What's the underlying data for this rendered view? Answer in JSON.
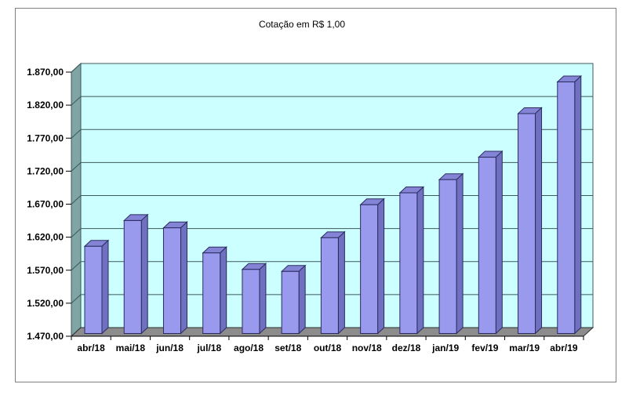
{
  "frame": {
    "border_color": "#808080",
    "background": "#ffffff"
  },
  "chart_data": {
    "type": "bar",
    "style": "3d-column",
    "title": "Cotação em R$ 1,00",
    "categories": [
      "abr/18",
      "mai/18",
      "jun/18",
      "jul/18",
      "ago/18",
      "set/18",
      "out/18",
      "nov/18",
      "dez/18",
      "jan/19",
      "fev/19",
      "mar/19",
      "abr/19"
    ],
    "values": [
      1602,
      1641,
      1630,
      1592,
      1567,
      1564,
      1615,
      1665,
      1683,
      1703,
      1737,
      1803,
      1851
    ],
    "xlabel": "",
    "ylabel": "",
    "ylim": [
      1470,
      1870
    ],
    "y_tick_step": 50,
    "y_tick_labels": [
      "1.470,00",
      "1.520,00",
      "1.570,00",
      "1.620,00",
      "1.670,00",
      "1.720,00",
      "1.770,00",
      "1.820,00",
      "1.870,00"
    ],
    "grid": true,
    "legend": "none",
    "colors": {
      "bar_front": "#9999EE",
      "bar_side": "#7070C0",
      "bar_top": "#8484D6",
      "bar_outline": "#2B2B60",
      "back_wall": "#CCFFFF",
      "side_wall": "#81A5A5",
      "floor": "#8C8C8C",
      "gridline": "#3C5858",
      "axis": "#000000"
    }
  }
}
